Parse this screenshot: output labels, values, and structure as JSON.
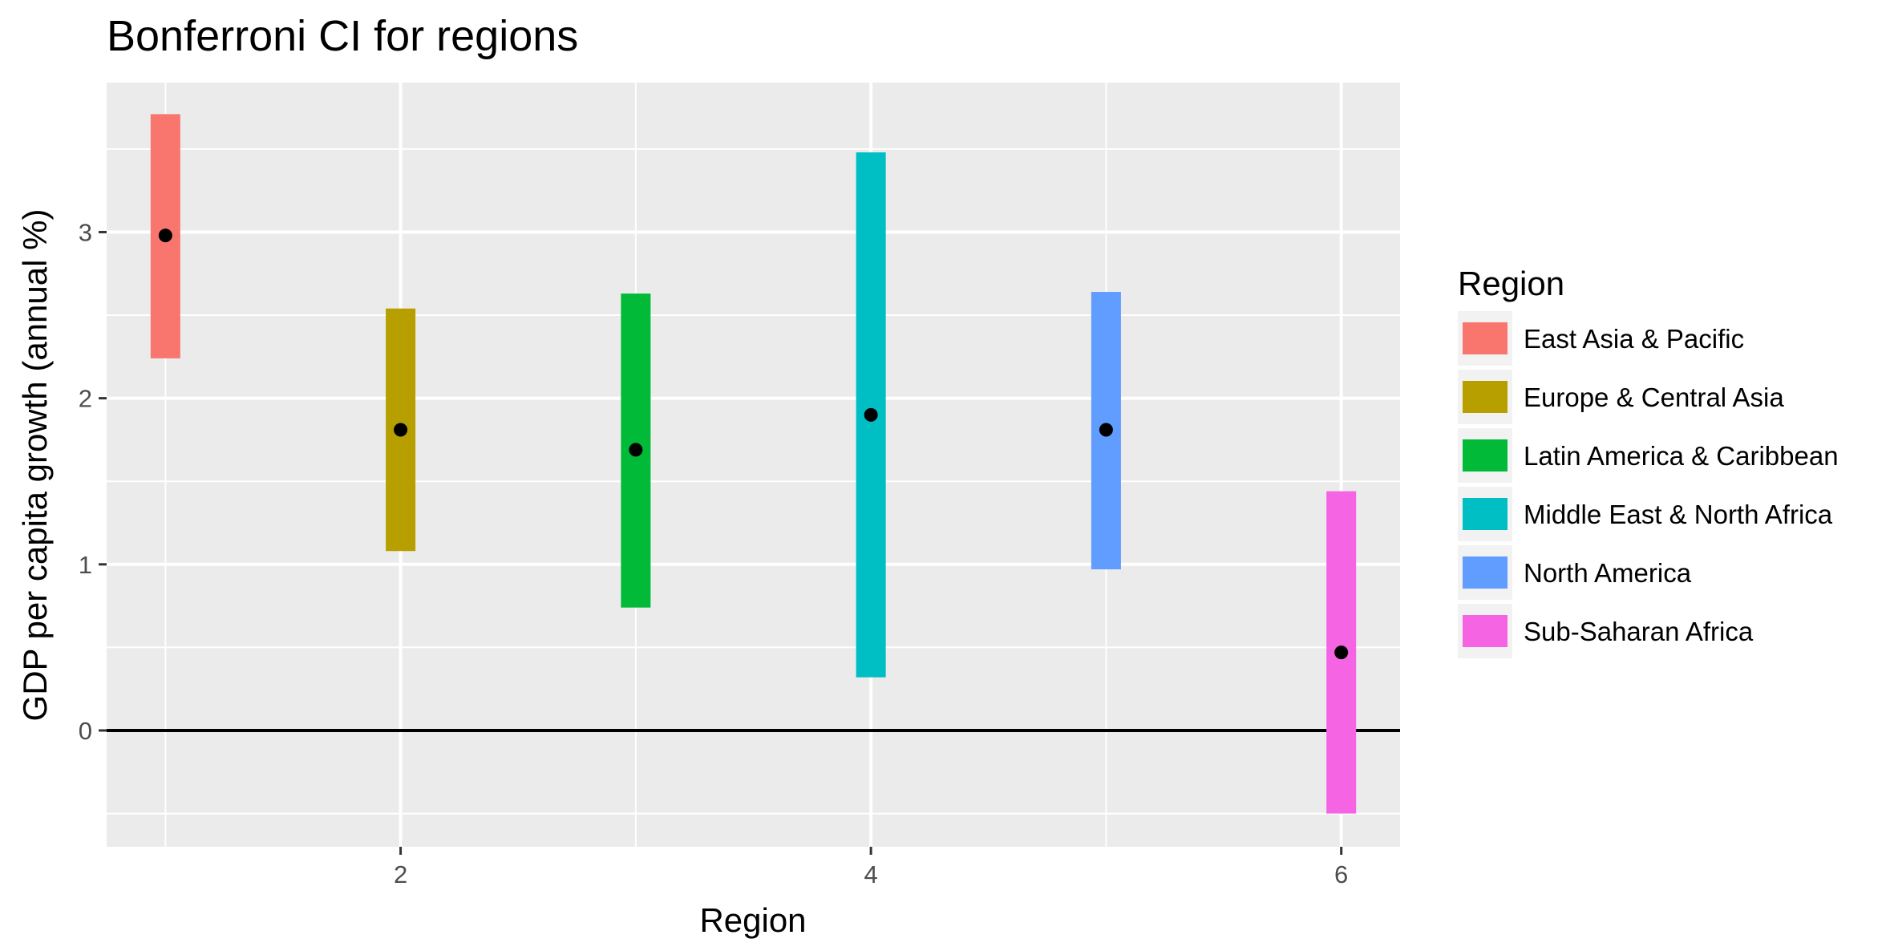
{
  "chart_data": {
    "type": "errorbar",
    "title": "Bonferroni CI for regions",
    "xlabel": "Region",
    "ylabel": "GDP per capita growth (annual %)",
    "x_ticks": [
      "2",
      "4",
      "6"
    ],
    "y_ticks": [
      "0",
      "1",
      "2",
      "3"
    ],
    "xlim": [
      0.75,
      6.25
    ],
    "ylim": [
      -0.7,
      3.9
    ],
    "reference_line_y": 0,
    "legend": {
      "title": "Region",
      "position": "right"
    },
    "series": [
      {
        "name": "East Asia & Pacific",
        "x": 1,
        "estimate": 2.98,
        "lower": 2.24,
        "upper": 3.71,
        "color": "#F8766D"
      },
      {
        "name": "Europe & Central Asia",
        "x": 2,
        "estimate": 1.81,
        "lower": 1.08,
        "upper": 2.54,
        "color": "#B79F00"
      },
      {
        "name": "Latin America & Caribbean",
        "x": 3,
        "estimate": 1.69,
        "lower": 0.74,
        "upper": 2.63,
        "color": "#00BA38"
      },
      {
        "name": "Middle East & North Africa",
        "x": 4,
        "estimate": 1.9,
        "lower": 0.32,
        "upper": 3.48,
        "color": "#00BFC4"
      },
      {
        "name": "North America",
        "x": 5,
        "estimate": 1.81,
        "lower": 0.97,
        "upper": 2.64,
        "color": "#619CFF"
      },
      {
        "name": "Sub-Saharan Africa",
        "x": 6,
        "estimate": 0.47,
        "lower": -0.5,
        "upper": 1.44,
        "color": "#F564E3"
      }
    ]
  }
}
